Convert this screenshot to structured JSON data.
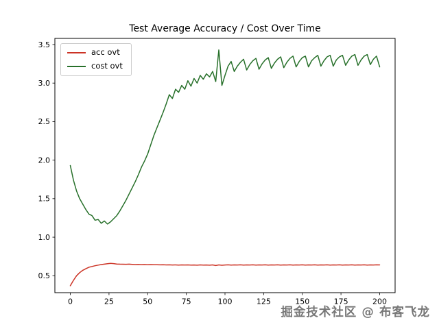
{
  "watermark": {
    "text": "掘金技术社区 @ 布客飞龙"
  },
  "chart_data": {
    "type": "line",
    "title": "Test Average Accuracy / Cost Over Time",
    "xlabel": "",
    "ylabel": "",
    "grid": false,
    "legend_position": "upper left",
    "xlim": [
      -10,
      210
    ],
    "ylim": [
      0.28,
      3.58
    ],
    "xticks": [
      0,
      25,
      50,
      75,
      100,
      125,
      150,
      175,
      200
    ],
    "xtick_labels": [
      "0",
      "25",
      "50",
      "75",
      "100",
      "125",
      "150",
      "175",
      "200"
    ],
    "yticks": [
      0.5,
      1.0,
      1.5,
      2.0,
      2.5,
      3.0,
      3.5
    ],
    "ytick_labels": [
      "0.5",
      "1.0",
      "1.5",
      "2.0",
      "2.5",
      "3.0",
      "3.5"
    ],
    "x": [
      0,
      2,
      4,
      6,
      8,
      10,
      12,
      14,
      16,
      18,
      20,
      22,
      24,
      26,
      28,
      30,
      32,
      34,
      36,
      38,
      40,
      42,
      44,
      46,
      48,
      50,
      52,
      54,
      56,
      58,
      60,
      62,
      64,
      66,
      68,
      70,
      72,
      74,
      76,
      78,
      80,
      82,
      84,
      86,
      88,
      90,
      92,
      94,
      96,
      98,
      100,
      102,
      104,
      106,
      108,
      110,
      112,
      114,
      116,
      118,
      120,
      122,
      124,
      126,
      128,
      130,
      132,
      134,
      136,
      138,
      140,
      142,
      144,
      146,
      148,
      150,
      152,
      154,
      156,
      158,
      160,
      162,
      164,
      166,
      168,
      170,
      172,
      174,
      176,
      178,
      180,
      182,
      184,
      186,
      188,
      190,
      192,
      194,
      196,
      198,
      200
    ],
    "series": [
      {
        "name": "acc ovt",
        "color": "#cc3325",
        "values": [
          0.37,
          0.44,
          0.5,
          0.54,
          0.57,
          0.59,
          0.61,
          0.62,
          0.63,
          0.638,
          0.645,
          0.65,
          0.655,
          0.66,
          0.657,
          0.652,
          0.65,
          0.649,
          0.648,
          0.65,
          0.647,
          0.645,
          0.646,
          0.644,
          0.645,
          0.643,
          0.644,
          0.642,
          0.643,
          0.641,
          0.642,
          0.64,
          0.641,
          0.639,
          0.64,
          0.638,
          0.64,
          0.639,
          0.64,
          0.638,
          0.639,
          0.637,
          0.64,
          0.638,
          0.639,
          0.637,
          0.64,
          0.632,
          0.64,
          0.636,
          0.639,
          0.641,
          0.638,
          0.64,
          0.639,
          0.641,
          0.638,
          0.64,
          0.639,
          0.641,
          0.638,
          0.64,
          0.639,
          0.641,
          0.638,
          0.64,
          0.639,
          0.641,
          0.638,
          0.64,
          0.639,
          0.641,
          0.638,
          0.64,
          0.639,
          0.641,
          0.638,
          0.64,
          0.639,
          0.641,
          0.638,
          0.64,
          0.639,
          0.641,
          0.638,
          0.64,
          0.639,
          0.641,
          0.638,
          0.64,
          0.639,
          0.641,
          0.638,
          0.64,
          0.639,
          0.641,
          0.638,
          0.64,
          0.639,
          0.641,
          0.64
        ]
      },
      {
        "name": "cost ovt",
        "color": "#27702a",
        "values": [
          1.93,
          1.74,
          1.6,
          1.5,
          1.43,
          1.36,
          1.3,
          1.28,
          1.22,
          1.23,
          1.18,
          1.21,
          1.17,
          1.2,
          1.24,
          1.28,
          1.34,
          1.41,
          1.48,
          1.56,
          1.64,
          1.72,
          1.81,
          1.91,
          1.99,
          2.08,
          2.2,
          2.32,
          2.42,
          2.52,
          2.62,
          2.73,
          2.85,
          2.8,
          2.92,
          2.88,
          2.97,
          2.92,
          3.03,
          2.96,
          3.06,
          3.0,
          3.1,
          3.05,
          3.12,
          3.08,
          3.15,
          3.02,
          3.43,
          2.97,
          3.1,
          3.22,
          3.28,
          3.15,
          3.22,
          3.27,
          3.31,
          3.17,
          3.24,
          3.29,
          3.32,
          3.18,
          3.25,
          3.3,
          3.33,
          3.19,
          3.26,
          3.31,
          3.34,
          3.2,
          3.27,
          3.32,
          3.35,
          3.21,
          3.28,
          3.33,
          3.35,
          3.21,
          3.29,
          3.33,
          3.36,
          3.22,
          3.29,
          3.34,
          3.36,
          3.22,
          3.3,
          3.34,
          3.36,
          3.23,
          3.3,
          3.35,
          3.37,
          3.23,
          3.3,
          3.35,
          3.37,
          3.24,
          3.31,
          3.35,
          3.21
        ]
      }
    ]
  }
}
